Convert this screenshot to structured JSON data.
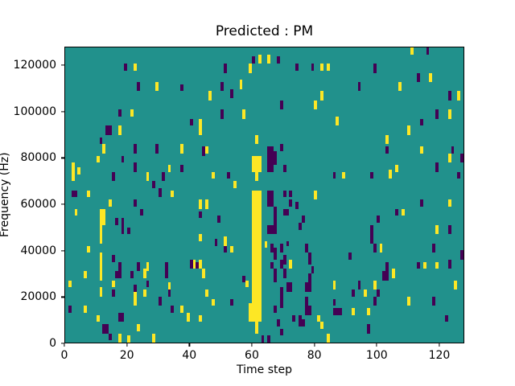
{
  "figure": {
    "title": "Predicted : PM",
    "xlabel": "Time step",
    "ylabel": "Frequency (Hz)",
    "x_ticks": [
      0,
      20,
      40,
      60,
      80,
      100,
      120
    ],
    "y_ticks": [
      0,
      20000,
      40000,
      60000,
      80000,
      100000,
      120000
    ],
    "colors": {
      "background": "#21918c",
      "high": "#fde725",
      "low": "#440154",
      "figure_bg": "#ffffff",
      "axis": "#000000"
    }
  },
  "chart_data": {
    "type": "heatmap",
    "title": "Predicted : PM",
    "xlabel": "Time step",
    "ylabel": "Frequency (Hz)",
    "xlim": [
      0,
      128
    ],
    "ylim": [
      0,
      128000
    ],
    "grid": false,
    "legend": "none",
    "colormap": "viridis",
    "value_colors": {
      "background_mid": "#21918c",
      "high": "#fde725",
      "low": "#440154"
    },
    "cell_format": "[t_start, t_width_steps, freq_lo_kHz, freq_hi_kHz, y=high|p=low]",
    "cells": [
      [
        19,
        1,
        118,
        121,
        "p"
      ],
      [
        22,
        1,
        118,
        121,
        "y"
      ],
      [
        23,
        1,
        109,
        113,
        "p"
      ],
      [
        29,
        1,
        109,
        113,
        "y"
      ],
      [
        37,
        1,
        109,
        112,
        "p"
      ],
      [
        17,
        1,
        98,
        101,
        "p"
      ],
      [
        21,
        1,
        98,
        101,
        "y"
      ],
      [
        13,
        1,
        90,
        94,
        "p"
      ],
      [
        14,
        1,
        90,
        94,
        "p"
      ],
      [
        17,
        1,
        90,
        94,
        "y"
      ],
      [
        11,
        1,
        86,
        89,
        "p"
      ],
      [
        40,
        1,
        94,
        97,
        "p"
      ],
      [
        43,
        1,
        94,
        97,
        "y"
      ],
      [
        60,
        1,
        121,
        124,
        "p"
      ],
      [
        62,
        1,
        121,
        125,
        "y"
      ],
      [
        65,
        1,
        121,
        125,
        "y"
      ],
      [
        68,
        1,
        121,
        124,
        "p"
      ],
      [
        51,
        1,
        117,
        121,
        "p"
      ],
      [
        59,
        1,
        117,
        121,
        "y"
      ],
      [
        74,
        1,
        118,
        121,
        "p"
      ],
      [
        79,
        1,
        118,
        121,
        "p"
      ],
      [
        82,
        1,
        118,
        121,
        "y"
      ],
      [
        84,
        1,
        118,
        121,
        "y"
      ],
      [
        50,
        1,
        109,
        113,
        "p"
      ],
      [
        56,
        1,
        110,
        114,
        "y"
      ],
      [
        46,
        1,
        105,
        109,
        "y"
      ],
      [
        53,
        1,
        106,
        110,
        "p"
      ],
      [
        82,
        1,
        105,
        109,
        "y"
      ],
      [
        80,
        1,
        101,
        105,
        "y"
      ],
      [
        69,
        1,
        101,
        105,
        "p"
      ],
      [
        50,
        1,
        97,
        101,
        "p"
      ],
      [
        57,
        1,
        97,
        101,
        "y"
      ],
      [
        43,
        1,
        90,
        94,
        "y"
      ],
      [
        61,
        1,
        86,
        90,
        "y"
      ],
      [
        111,
        1,
        125,
        128,
        "y"
      ],
      [
        116,
        1,
        125,
        128,
        "p"
      ],
      [
        99,
        1,
        117,
        121,
        "p"
      ],
      [
        113,
        1,
        113,
        117,
        "p"
      ],
      [
        117,
        1,
        113,
        117,
        "y"
      ],
      [
        94,
        1,
        109,
        113,
        "p"
      ],
      [
        107,
        1,
        109,
        113,
        "y"
      ],
      [
        123,
        1,
        105,
        109,
        "p"
      ],
      [
        126,
        1,
        105,
        109,
        "y"
      ],
      [
        119,
        1,
        97,
        101,
        "p"
      ],
      [
        123,
        1,
        97,
        101,
        "y"
      ],
      [
        87,
        1,
        94,
        98,
        "y"
      ],
      [
        114,
        1,
        94,
        97,
        "p"
      ],
      [
        110,
        1,
        90,
        94,
        "y"
      ],
      [
        103,
        1,
        86,
        90,
        "y"
      ],
      [
        12,
        1,
        82,
        86,
        "y"
      ],
      [
        22,
        1,
        82,
        86,
        "p"
      ],
      [
        29,
        1,
        82,
        86,
        "p"
      ],
      [
        37,
        1,
        82,
        86,
        "y"
      ],
      [
        44,
        1,
        81,
        85,
        "p"
      ],
      [
        45,
        1,
        82,
        85,
        "y"
      ],
      [
        69,
        1,
        83,
        86,
        "p"
      ],
      [
        103,
        1,
        82,
        85,
        "p"
      ],
      [
        114,
        1,
        82,
        85,
        "y"
      ],
      [
        124,
        1,
        82,
        85,
        "p"
      ],
      [
        123,
        1,
        78,
        82,
        "y"
      ],
      [
        127,
        1,
        78,
        82,
        "p"
      ],
      [
        10,
        1,
        78,
        81,
        "y"
      ],
      [
        18,
        1,
        78,
        81,
        "p"
      ],
      [
        22,
        1,
        74,
        78,
        "p"
      ],
      [
        2,
        1,
        70,
        78,
        "y"
      ],
      [
        4,
        1,
        73,
        76,
        "y"
      ],
      [
        33,
        1,
        74,
        77,
        "y"
      ],
      [
        37,
        1,
        74,
        77,
        "p"
      ],
      [
        119,
        1,
        74,
        78,
        "p"
      ],
      [
        106,
        1,
        74,
        77,
        "y"
      ],
      [
        65,
        2,
        74,
        85,
        "p"
      ],
      [
        67,
        1,
        77,
        83,
        "p"
      ],
      [
        70,
        1,
        74,
        77,
        "p"
      ],
      [
        15,
        1,
        70,
        74,
        "p"
      ],
      [
        26,
        1,
        70,
        74,
        "y"
      ],
      [
        28,
        1,
        67,
        70,
        "p"
      ],
      [
        31,
        1,
        70,
        74,
        "p"
      ],
      [
        47,
        1,
        71,
        74,
        "y"
      ],
      [
        52,
        1,
        71,
        74,
        "p"
      ],
      [
        54,
        1,
        67,
        70,
        "y"
      ],
      [
        104,
        1,
        71,
        75,
        "y"
      ],
      [
        86,
        1,
        71,
        74,
        "p"
      ],
      [
        89,
        1,
        71,
        74,
        "y"
      ],
      [
        98,
        1,
        71,
        74,
        "p"
      ],
      [
        126,
        1,
        71,
        74,
        "p"
      ],
      [
        2,
        2,
        63,
        66,
        "p"
      ],
      [
        7,
        1,
        63,
        66,
        "y"
      ],
      [
        30,
        1,
        63,
        67,
        "p"
      ],
      [
        34,
        1,
        63,
        66,
        "y"
      ],
      [
        70,
        1,
        63,
        66,
        "p"
      ],
      [
        72,
        1,
        63,
        66,
        "p"
      ],
      [
        80,
        1,
        62,
        66,
        "y"
      ],
      [
        65,
        2,
        59,
        66,
        "p"
      ],
      [
        14,
        1,
        59,
        62,
        "y"
      ],
      [
        22,
        1,
        59,
        62,
        "p"
      ],
      [
        72,
        1,
        59,
        62,
        "p"
      ],
      [
        74,
        1,
        58,
        61,
        "p"
      ],
      [
        114,
        1,
        59,
        62,
        "p"
      ],
      [
        123,
        1,
        59,
        62,
        "y"
      ],
      [
        45,
        1,
        58,
        62,
        "y"
      ],
      [
        43,
        1,
        58,
        62,
        "y"
      ],
      [
        24,
        1,
        55,
        58,
        "p"
      ],
      [
        3,
        1,
        55,
        58,
        "y"
      ],
      [
        70,
        2,
        55,
        58,
        "p"
      ],
      [
        106,
        1,
        55,
        58,
        "p"
      ],
      [
        108,
        1,
        55,
        58,
        "y"
      ],
      [
        43,
        1,
        54,
        57,
        "p"
      ],
      [
        16,
        1,
        51,
        54,
        "p"
      ],
      [
        18,
        1,
        47,
        54,
        "p"
      ],
      [
        49,
        1,
        52,
        55,
        "p"
      ],
      [
        76,
        1,
        52,
        55,
        "p"
      ],
      [
        100,
        1,
        52,
        55,
        "p"
      ],
      [
        11,
        1,
        43,
        58,
        "y"
      ],
      [
        12,
        1,
        51,
        58,
        "y"
      ],
      [
        20,
        1,
        47,
        50,
        "p"
      ],
      [
        75,
        1,
        49,
        52,
        "p"
      ],
      [
        65,
        2,
        47,
        51,
        "p"
      ],
      [
        67,
        1,
        47,
        59,
        "p"
      ],
      [
        98,
        1,
        43,
        51,
        "p"
      ],
      [
        119,
        1,
        47,
        51,
        "y"
      ],
      [
        123,
        1,
        47,
        51,
        "p"
      ],
      [
        43,
        1,
        44,
        47,
        "y"
      ],
      [
        48,
        1,
        42,
        45,
        "p"
      ],
      [
        51,
        1,
        42,
        46,
        "y"
      ],
      [
        71,
        1,
        42,
        44,
        "p"
      ],
      [
        64,
        1,
        41,
        44,
        "y"
      ],
      [
        7,
        1,
        39,
        42,
        "y"
      ],
      [
        51,
        1,
        39,
        42,
        "p"
      ],
      [
        53,
        1,
        39,
        42,
        "y"
      ],
      [
        99,
        1,
        39,
        43,
        "p"
      ],
      [
        101,
        1,
        39,
        43,
        "y"
      ],
      [
        118,
        1,
        39,
        43,
        "p"
      ],
      [
        66,
        1,
        39,
        43,
        "p"
      ],
      [
        67,
        1,
        36,
        41,
        "p"
      ],
      [
        69,
        1,
        39,
        43,
        "p"
      ],
      [
        77,
        1,
        39,
        43,
        "p"
      ],
      [
        91,
        1,
        36,
        39,
        "p"
      ],
      [
        127,
        1,
        36,
        40,
        "p"
      ],
      [
        15,
        1,
        35,
        38,
        "p"
      ],
      [
        40,
        1,
        32,
        36,
        "p"
      ],
      [
        41,
        1,
        32,
        36,
        "y"
      ],
      [
        42,
        1,
        32,
        35,
        "p"
      ],
      [
        43,
        1,
        32,
        36,
        "y"
      ],
      [
        70,
        1,
        34,
        38,
        "p"
      ],
      [
        78,
        1,
        34,
        39,
        "p"
      ],
      [
        17,
        1,
        31,
        35,
        "p"
      ],
      [
        16,
        2,
        28,
        31,
        "p"
      ],
      [
        26,
        1,
        31,
        35,
        "y"
      ],
      [
        23,
        1,
        31,
        35,
        "p"
      ],
      [
        21,
        1,
        28,
        31,
        "p"
      ],
      [
        25,
        1,
        28,
        32,
        "y"
      ],
      [
        6,
        1,
        28,
        31,
        "y"
      ],
      [
        32,
        1,
        28,
        35,
        "p"
      ],
      [
        44,
        1,
        28,
        32,
        "y"
      ],
      [
        11,
        1,
        27,
        39,
        "y"
      ],
      [
        66,
        1,
        32,
        35,
        "p"
      ],
      [
        67,
        1,
        26,
        32,
        "p"
      ],
      [
        69,
        1,
        32,
        36,
        "p"
      ],
      [
        70,
        1,
        28,
        32,
        "p"
      ],
      [
        72,
        1,
        32,
        36,
        "y"
      ],
      [
        79,
        1,
        30,
        33,
        "p"
      ],
      [
        78,
        1,
        26,
        30,
        "p"
      ],
      [
        103,
        1,
        31,
        35,
        "p"
      ],
      [
        102,
        2,
        27,
        31,
        "p"
      ],
      [
        105,
        1,
        28,
        32,
        "y"
      ],
      [
        113,
        1,
        32,
        35,
        "p"
      ],
      [
        115,
        1,
        32,
        35,
        "y"
      ],
      [
        119,
        1,
        32,
        35,
        "y"
      ],
      [
        123,
        1,
        32,
        36,
        "p"
      ],
      [
        57,
        1,
        26,
        29,
        "p"
      ],
      [
        1,
        1,
        24,
        27,
        "y"
      ],
      [
        15,
        1,
        24,
        27,
        "y"
      ],
      [
        26,
        1,
        24,
        27,
        "p"
      ],
      [
        58,
        1,
        24,
        27,
        "y"
      ],
      [
        86,
        1,
        23,
        27,
        "y"
      ],
      [
        94,
        1,
        23,
        27,
        "p"
      ],
      [
        99,
        1,
        23,
        27,
        "y"
      ],
      [
        125,
        1,
        23,
        27,
        "y"
      ],
      [
        15,
        1,
        20,
        23,
        "p"
      ],
      [
        22,
        1,
        22,
        25,
        "p"
      ],
      [
        22,
        1,
        16,
        22,
        "y"
      ],
      [
        25,
        1,
        20,
        23,
        "y"
      ],
      [
        33,
        1,
        22,
        26,
        "y"
      ],
      [
        33,
        1,
        20,
        23,
        "p"
      ],
      [
        30,
        1,
        16,
        20,
        "p"
      ],
      [
        45,
        1,
        20,
        23,
        "y"
      ],
      [
        71,
        2,
        22,
        26,
        "p"
      ],
      [
        77,
        2,
        22,
        26,
        "p"
      ],
      [
        92,
        1,
        20,
        23,
        "p"
      ],
      [
        96,
        1,
        20,
        23,
        "y"
      ],
      [
        100,
        1,
        20,
        23,
        "p"
      ],
      [
        11,
        1,
        20,
        24,
        "y"
      ],
      [
        47,
        1,
        16,
        19,
        "y"
      ],
      [
        53,
        1,
        16,
        19,
        "p"
      ],
      [
        1,
        1,
        13,
        16,
        "p"
      ],
      [
        6,
        1,
        13,
        16,
        "y"
      ],
      [
        34,
        1,
        13,
        16,
        "p"
      ],
      [
        37,
        1,
        13,
        16,
        "y"
      ],
      [
        69,
        1,
        15,
        24,
        "p"
      ],
      [
        67,
        1,
        13,
        16,
        "p"
      ],
      [
        77,
        1,
        16,
        20,
        "p"
      ],
      [
        118,
        1,
        16,
        20,
        "p"
      ],
      [
        110,
        1,
        16,
        20,
        "y"
      ],
      [
        99,
        1,
        16,
        20,
        "p"
      ],
      [
        86,
        1,
        16,
        19,
        "p"
      ],
      [
        86,
        3,
        12,
        15,
        "p"
      ],
      [
        92,
        1,
        12,
        15,
        "y"
      ],
      [
        97,
        1,
        12,
        15,
        "y"
      ],
      [
        77,
        2,
        12,
        16,
        "p"
      ],
      [
        10,
        1,
        9,
        12,
        "y"
      ],
      [
        17,
        2,
        9,
        13,
        "p"
      ],
      [
        39,
        1,
        9,
        13,
        "y"
      ],
      [
        43,
        1,
        9,
        12,
        "y"
      ],
      [
        73,
        1,
        9,
        12,
        "p"
      ],
      [
        75,
        1,
        9,
        12,
        "p"
      ],
      [
        75,
        2,
        7,
        10,
        "p"
      ],
      [
        81,
        1,
        9,
        12,
        "y"
      ],
      [
        82,
        1,
        6,
        9,
        "y"
      ],
      [
        122,
        1,
        9,
        12,
        "p"
      ],
      [
        68,
        1,
        7,
        10,
        "p"
      ],
      [
        12,
        2,
        4,
        8,
        "p"
      ],
      [
        23,
        1,
        5,
        8,
        "y"
      ],
      [
        97,
        1,
        4,
        8,
        "p"
      ],
      [
        14,
        1,
        1,
        4,
        "p"
      ],
      [
        17,
        1,
        0,
        4,
        "y"
      ],
      [
        20,
        1,
        0,
        3,
        "y"
      ],
      [
        28,
        1,
        0,
        4,
        "y"
      ],
      [
        63,
        1,
        0,
        3,
        "p"
      ],
      [
        65,
        1,
        0,
        3,
        "p"
      ],
      [
        69,
        1,
        3,
        6,
        "p"
      ],
      [
        84,
        1,
        0,
        4,
        "y"
      ],
      [
        60,
        3,
        9,
        66,
        "y"
      ],
      [
        59,
        1,
        9,
        17,
        "y"
      ],
      [
        60,
        3,
        74,
        81,
        "y"
      ],
      [
        61,
        1,
        70,
        74,
        "y"
      ],
      [
        61,
        1,
        4,
        9,
        "y"
      ]
    ]
  }
}
